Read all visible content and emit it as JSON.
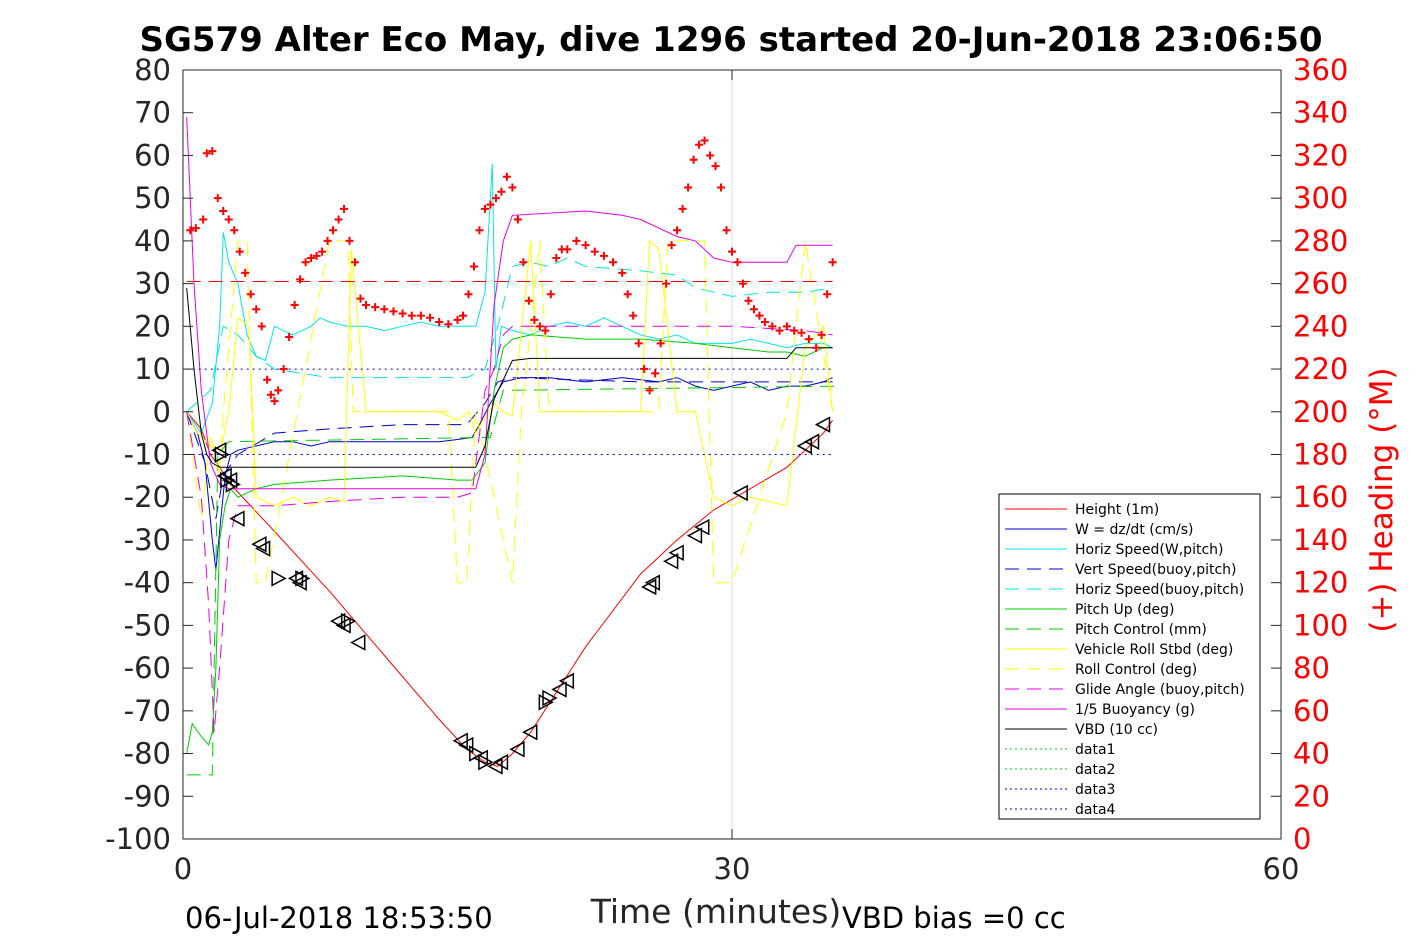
{
  "chart_data": {
    "type": "line",
    "title": "SG579 Alter Eco May, dive 1296 started 20-Jun-2018 23:06:50",
    "xlabel": "Time (minutes)",
    "ylabel_right": "(+) Heading (°M)",
    "xlim": [
      0,
      60
    ],
    "ylim": [
      -100,
      80
    ],
    "ylim_right": [
      0,
      360
    ],
    "xticks": [
      0,
      30,
      60
    ],
    "yticks": [
      -100,
      -90,
      -80,
      -70,
      -60,
      -50,
      -40,
      -30,
      -20,
      -10,
      0,
      10,
      20,
      30,
      40,
      50,
      60,
      70,
      80
    ],
    "yticks_right": [
      0,
      20,
      40,
      60,
      80,
      100,
      120,
      140,
      160,
      180,
      200,
      220,
      240,
      260,
      280,
      300,
      320,
      340,
      360
    ],
    "grid": "x-only",
    "legend_position": "right",
    "footer_left": "06-Jul-2018 18:53:50",
    "footer_right": "VBD bias =0 cc",
    "series": [
      {
        "name": "Height (1m)",
        "color": "#ff0000",
        "style": "solid",
        "width": 1,
        "x": [
          0.2,
          1.0,
          1.5,
          2.0,
          2.6,
          5.0,
          8.0,
          10.0,
          14.0,
          15.5,
          16.5,
          17.2,
          18.0,
          19.0,
          20.5,
          22.0,
          25.0,
          27.0,
          29.0,
          31.0,
          33.0,
          35.0,
          35.5
        ],
        "y": [
          0,
          -4,
          -10,
          -13,
          -17,
          -28,
          -42,
          -52,
          -72,
          -79,
          -82,
          -83,
          -80,
          -75,
          -65,
          -55,
          -38,
          -30,
          -23,
          -18,
          -13,
          -5,
          -2
        ]
      },
      {
        "name": "W = dz/dt (cm/s)",
        "color": "#0000cc",
        "style": "solid",
        "width": 1,
        "x": [
          0.2,
          0.8,
          1.2,
          1.6,
          1.8,
          2.0,
          2.3,
          2.6,
          3.0,
          4.0,
          5.0,
          6.0,
          7.0,
          8.0,
          9.0,
          10.0,
          11.0,
          12.0,
          13.0,
          14.0,
          15.0,
          15.8,
          16.2,
          16.8,
          17.5,
          18.5,
          20.0,
          22.0,
          24.0,
          26.0,
          27.0,
          28.0,
          29.0,
          30.0,
          31.0,
          32.0,
          33.0,
          34.0,
          35.0,
          35.5
        ],
        "y": [
          0,
          -5,
          -12,
          -30,
          -37,
          -28,
          -15,
          -10,
          -9,
          -8,
          -7,
          -7,
          -8,
          -7,
          -7,
          -7,
          -7,
          -7,
          -7,
          -7,
          -6.5,
          -6,
          -3,
          2,
          7,
          8,
          8,
          7,
          8,
          7,
          8,
          6,
          5,
          6,
          7,
          5,
          6,
          6,
          7,
          8
        ]
      },
      {
        "name": "Horiz Speed(W,pitch)",
        "color": "#00e5e5",
        "style": "solid",
        "width": 1,
        "x": [
          0.2,
          1.0,
          1.6,
          2.0,
          2.2,
          2.5,
          3.0,
          3.5,
          4.0,
          4.5,
          5.0,
          6.0,
          7.0,
          7.5,
          8.0,
          9.0,
          10.0,
          11.0,
          12.0,
          13.0,
          14.0,
          15.0,
          16.0,
          16.5,
          16.9,
          17.1,
          17.4,
          18.0,
          19.0,
          20.0,
          21.0,
          22.0,
          23.0,
          24.0,
          25.0,
          26.0,
          27.0,
          28.0,
          29.0,
          30.0,
          31.0,
          32.0,
          33.0,
          34.0,
          35.0,
          35.5
        ],
        "y": [
          0,
          -5,
          2,
          20,
          42,
          35,
          30,
          18,
          13,
          12,
          20,
          18,
          20,
          22,
          21,
          20,
          20,
          19,
          20,
          21,
          20,
          20,
          20,
          28,
          58,
          10,
          20,
          19,
          18,
          20,
          21,
          20,
          22,
          20,
          18,
          17,
          18,
          16,
          16,
          16,
          17,
          16,
          15,
          16,
          16,
          15
        ]
      },
      {
        "name": "Vert Speed(buoy,pitch)",
        "color": "#0000cc",
        "style": "dashed",
        "width": 1,
        "x": [
          0.2,
          1.2,
          1.8,
          2.2,
          3.0,
          5.0,
          8.0,
          12.0,
          15.5,
          16.5,
          17.2,
          18.0,
          25.0,
          30.0,
          35.5
        ],
        "y": [
          0,
          -12,
          -25,
          -15,
          -10,
          -5,
          -4,
          -3,
          -3,
          2,
          7,
          8,
          7,
          7,
          7
        ]
      },
      {
        "name": "Horiz Speed(buoy,pitch)",
        "color": "#00e5e5",
        "style": "dashed",
        "width": 1,
        "x": [
          0.2,
          1.5,
          2.2,
          3.0,
          4.0,
          5.0,
          8.0,
          12.0,
          15.5,
          16.5,
          17.2,
          18.0,
          19.0,
          20.0,
          21.0,
          22.0,
          25.0,
          27.0,
          28.0,
          30.0,
          32.0,
          34.0,
          35.5
        ],
        "y": [
          0,
          5,
          20,
          18,
          13,
          10,
          8,
          8,
          8,
          10,
          20,
          34,
          35,
          34,
          36,
          34,
          33,
          32,
          29,
          27,
          28,
          28,
          29
        ]
      },
      {
        "name": "Pitch Up (deg)",
        "color": "#00cc00",
        "style": "solid",
        "width": 1,
        "x": [
          0.2,
          0.5,
          1.0,
          1.4,
          1.6,
          1.8,
          2.0,
          2.3,
          2.6,
          3.0,
          4.0,
          5.0,
          8.0,
          12.0,
          15.0,
          15.8,
          16.5,
          17.0,
          17.5,
          18.0,
          19.0,
          22.0,
          25.0,
          28.0,
          30.0,
          32.0,
          33.0,
          34.0,
          35.0,
          35.5
        ],
        "y": [
          -80,
          -73,
          -76,
          -78,
          -75,
          -60,
          -30,
          -22,
          -18,
          -20,
          -18,
          -17,
          -16,
          -15,
          -16,
          -16,
          -12,
          5,
          15,
          17,
          18,
          17,
          17,
          16,
          15,
          14,
          14,
          13,
          15,
          15
        ]
      },
      {
        "name": "Pitch Control (mm)",
        "color": "#00cc00",
        "style": "dashed",
        "width": 1,
        "x": [
          0.2,
          1.6,
          1.9,
          2.5,
          16.8,
          17.5,
          36.0
        ],
        "y": [
          -85,
          -85,
          -10,
          -7,
          -6,
          5,
          6
        ]
      },
      {
        "name": "Vehicle Roll Stbd (deg)",
        "color": "#ffff00",
        "style": "solid",
        "width": 1,
        "x": [
          0.2,
          0.8,
          1.5,
          2.0,
          2.5,
          3.0,
          3.6,
          4.0,
          5.0,
          6.0,
          7.0,
          8.0,
          8.8,
          9.2,
          10.0,
          14.0,
          15.0,
          15.6,
          16.0,
          17.0,
          17.5,
          18.0,
          19.0,
          19.5,
          20.0,
          20.5,
          24.0,
          25.0,
          25.5,
          26.0,
          27.0,
          27.5,
          28.0,
          29.0,
          30.0,
          31.0,
          33.0,
          34.0,
          35.0,
          35.5
        ],
        "y": [
          0,
          -5,
          -8,
          -10,
          0,
          22,
          20,
          -20,
          -22,
          -20,
          -22,
          -20,
          -21,
          38,
          0,
          0,
          -2,
          0,
          -5,
          2,
          0,
          -1,
          40,
          0,
          0,
          0,
          0,
          0,
          40,
          38,
          0,
          0,
          0,
          -20,
          -22,
          -20,
          -22,
          15,
          20,
          0
        ]
      },
      {
        "name": "Roll Control (deg)",
        "color": "#ffff00",
        "style": "dashed",
        "width": 1,
        "x": [
          0.2,
          1.0,
          1.5,
          2.0,
          2.2,
          3.0,
          3.5,
          4.0,
          4.5,
          8.0,
          9.0,
          9.3,
          14.5,
          15.0,
          15.5,
          16.0,
          18.0,
          18.5,
          19.5,
          20.0,
          26.0,
          26.5,
          28.5,
          29.0,
          30.0,
          33.0,
          34.0,
          35.5
        ],
        "y": [
          0,
          -25,
          -5,
          -15,
          0,
          40,
          40,
          -40,
          -40,
          40,
          40,
          0,
          0,
          -40,
          -40,
          0,
          -40,
          0,
          40,
          0,
          0,
          40,
          40,
          -40,
          -40,
          0,
          40,
          0
        ]
      },
      {
        "name": "Glide Angle (buoy,pitch)",
        "color": "#e600e6",
        "style": "dashed",
        "width": 1,
        "x": [
          0.2,
          1.0,
          1.4,
          1.7,
          2.0,
          2.5,
          3.0,
          5.0,
          8.0,
          12.0,
          15.0,
          15.8,
          16.5,
          17.0,
          17.5,
          18.0,
          22.0,
          26.0,
          30.0,
          34.0,
          35.5
        ],
        "y": [
          0,
          -20,
          -45,
          -75,
          -60,
          -30,
          -22,
          -22,
          -21,
          -20,
          -20,
          -19,
          5,
          10,
          18,
          20,
          20,
          20,
          20,
          19,
          18
        ]
      },
      {
        "name": "1/5 Buoyancy (g)",
        "color": "#e600e6",
        "style": "solid",
        "width": 1,
        "x": [
          0.2,
          0.6,
          1.0,
          1.5,
          2.0,
          2.5,
          3.0,
          5.0,
          10.0,
          15.0,
          16.0,
          16.5,
          17.0,
          17.5,
          18.0,
          22.0,
          24.0,
          25.0,
          26.0,
          27.0,
          28.0,
          29.0,
          30.0,
          33.0,
          33.5,
          34.0,
          35.5
        ],
        "y": [
          69,
          30,
          5,
          -12,
          -17,
          -18,
          -18,
          -18,
          -18,
          -18,
          -18,
          -10,
          25,
          40,
          46,
          47,
          46,
          45,
          43,
          41,
          40,
          36,
          35,
          35,
          39,
          39,
          39
        ]
      },
      {
        "name": "VBD (10 cc)",
        "color": "#000000",
        "style": "solid",
        "width": 1,
        "x": [
          0.2,
          0.6,
          1.0,
          1.3,
          1.6,
          2.0,
          5.0,
          10.0,
          14.0,
          16.0,
          16.5,
          17.0,
          18.0,
          19.0,
          25.0,
          30.0,
          33.0,
          33.5,
          35.5
        ],
        "y": [
          29,
          10,
          -5,
          -10,
          -12,
          -13,
          -13,
          -13,
          -13,
          -13,
          -8,
          3,
          12,
          12.5,
          12.5,
          12.5,
          12.5,
          15,
          15
        ]
      },
      {
        "name": "data1",
        "color": "#00cc00",
        "style": "dotted",
        "width": 1,
        "x": [],
        "y": []
      },
      {
        "name": "data2",
        "color": "#00cc00",
        "style": "dotted",
        "width": 1,
        "x": [],
        "y": []
      },
      {
        "name": "data3",
        "color": "#0000cc",
        "style": "dotted",
        "width": 1,
        "x": [
          0.2,
          35.5
        ],
        "y": [
          10,
          10
        ]
      },
      {
        "name": "data4",
        "color": "#0000cc",
        "style": "dotted",
        "width": 1,
        "x": [
          0.2,
          35.5
        ],
        "y": [
          -10,
          -10
        ]
      }
    ],
    "heading_reference": {
      "color": "#ff0000",
      "style": "dashed",
      "x": [
        0.2,
        35.5
      ],
      "y_right": [
        261,
        261
      ]
    },
    "heading_points": {
      "color": "#ff0000",
      "marker": "plus",
      "x": [
        0.4,
        0.7,
        1.1,
        1.3,
        1.6,
        1.9,
        2.2,
        2.5,
        2.8,
        3.1,
        3.4,
        3.7,
        4.0,
        4.3,
        4.6,
        4.8,
        5.0,
        5.2,
        5.5,
        5.8,
        6.1,
        6.4,
        6.7,
        7.0,
        7.3,
        7.6,
        7.9,
        8.2,
        8.5,
        8.8,
        9.1,
        9.4,
        9.7,
        10.0,
        10.5,
        11.0,
        11.5,
        12.0,
        12.5,
        13.0,
        13.5,
        14.0,
        14.5,
        15.0,
        15.3,
        15.6,
        15.9,
        16.2,
        16.5,
        16.8,
        17.1,
        17.4,
        17.7,
        18.0,
        18.3,
        18.6,
        18.9,
        19.2,
        19.5,
        19.8,
        20.1,
        20.4,
        20.7,
        21.0,
        21.5,
        22.0,
        22.5,
        23.0,
        23.5,
        24.0,
        24.3,
        24.6,
        24.9,
        25.2,
        25.5,
        25.8,
        26.1,
        26.4,
        26.7,
        27.0,
        27.3,
        27.6,
        27.9,
        28.2,
        28.5,
        28.8,
        29.1,
        29.4,
        29.7,
        30.0,
        30.3,
        30.6,
        30.9,
        31.2,
        31.5,
        31.8,
        32.2,
        32.6,
        33.0,
        33.4,
        33.8,
        34.2,
        34.6,
        34.9,
        35.2,
        35.5
      ],
      "y": [
        285,
        286,
        290,
        321,
        322,
        300,
        294,
        290,
        285,
        275,
        265,
        255,
        248,
        240,
        215,
        208,
        205,
        210,
        220,
        235,
        250,
        262,
        270,
        272,
        273,
        275,
        280,
        285,
        290,
        295,
        280,
        270,
        253,
        250,
        249,
        248,
        247,
        246,
        245,
        245,
        244,
        242,
        241,
        243,
        245,
        255,
        268,
        285,
        295,
        297,
        300,
        303,
        310,
        305,
        290,
        270,
        252,
        243,
        240,
        238,
        255,
        272,
        276,
        276,
        280,
        278,
        275,
        273,
        270,
        265,
        255,
        245,
        232,
        220,
        210,
        218,
        232,
        260,
        278,
        285,
        295,
        305,
        318,
        325,
        327,
        320,
        315,
        305,
        285,
        275,
        270,
        260,
        252,
        248,
        245,
        242,
        240,
        238,
        240,
        238,
        237,
        234,
        230,
        236,
        255,
        270
      ]
    },
    "triangle_markers": {
      "color": "#000000",
      "marker": "triangle",
      "left_pointing": [
        [
          2.0,
          -9
        ],
        [
          2.3,
          -15
        ],
        [
          2.6,
          -16
        ],
        [
          3.0,
          -25
        ],
        [
          4.2,
          -31
        ],
        [
          4.4,
          -32
        ],
        [
          6.2,
          -39
        ],
        [
          6.4,
          -40
        ],
        [
          8.5,
          -49
        ],
        [
          8.8,
          -50
        ],
        [
          9.6,
          -54
        ],
        [
          15.2,
          -77
        ],
        [
          15.5,
          -78
        ],
        [
          16.3,
          -81
        ],
        [
          17.1,
          -83
        ],
        [
          17.4,
          -82
        ],
        [
          18.3,
          -79
        ],
        [
          19.0,
          -75
        ],
        [
          20.6,
          -65
        ],
        [
          21.0,
          -63
        ],
        [
          25.5,
          -41
        ],
        [
          25.7,
          -40
        ],
        [
          26.7,
          -35
        ],
        [
          27.0,
          -33
        ],
        [
          28.0,
          -29
        ],
        [
          28.4,
          -27
        ],
        [
          30.5,
          -19
        ],
        [
          34.0,
          -8
        ],
        [
          34.4,
          -7
        ],
        [
          35.0,
          -3
        ]
      ],
      "right_pointing": [
        [
          2.1,
          -10
        ],
        [
          2.4,
          -16
        ],
        [
          2.7,
          -17
        ],
        [
          5.2,
          -39
        ],
        [
          6.5,
          -39
        ],
        [
          9.0,
          -49
        ],
        [
          16.0,
          -80
        ],
        [
          16.5,
          -82
        ],
        [
          19.8,
          -68
        ],
        [
          20.0,
          -67
        ]
      ]
    }
  }
}
